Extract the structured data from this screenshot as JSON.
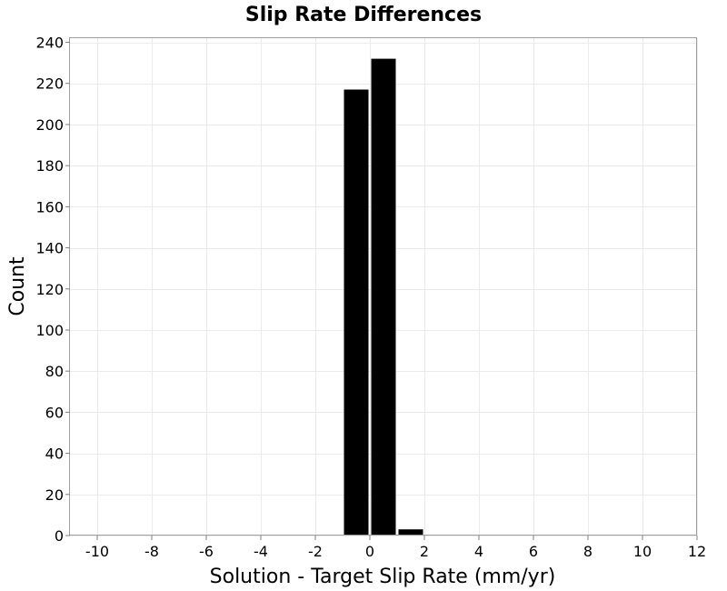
{
  "chart_data": {
    "type": "bar",
    "title": "Slip Rate Differences",
    "xlabel": "Solution - Target Slip Rate (mm/yr)",
    "ylabel": "Count",
    "xlim": [
      -11,
      12
    ],
    "ylim": [
      0,
      242
    ],
    "x_ticks": [
      -10,
      -8,
      -6,
      -4,
      -2,
      0,
      2,
      4,
      6,
      8,
      10,
      12
    ],
    "y_ticks": [
      0,
      20,
      40,
      60,
      80,
      100,
      120,
      140,
      160,
      180,
      200,
      220,
      240
    ],
    "grid": true,
    "bar_color": "#000000",
    "bins": [
      {
        "start": -1,
        "end": 0,
        "count": 217
      },
      {
        "start": 0,
        "end": 1,
        "count": 232
      },
      {
        "start": 1,
        "end": 2,
        "count": 3
      }
    ]
  }
}
